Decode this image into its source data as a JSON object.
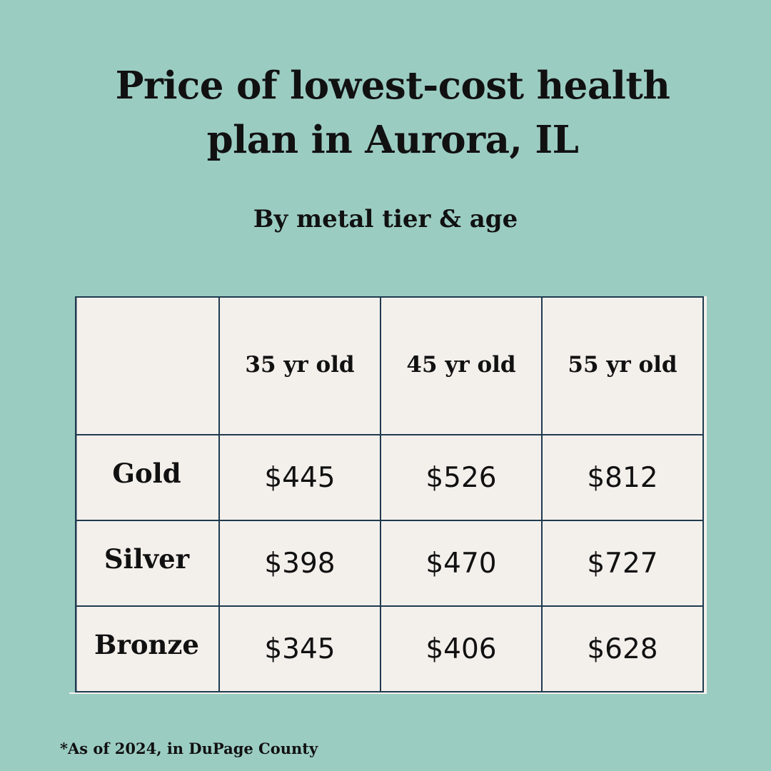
{
  "chart_data": {
    "type": "table",
    "title_lines": [
      "Price of lowest-cost health",
      "plan in Aurora, IL"
    ],
    "subtitle": "By metal tier & age",
    "columns": [
      "35 yr old",
      "45 yr old",
      "55 yr old"
    ],
    "rows": [
      {
        "tier": "Gold",
        "values": [
          "$445",
          "$526",
          "$812"
        ]
      },
      {
        "tier": "Silver",
        "values": [
          "$398",
          "$470",
          "$727"
        ]
      },
      {
        "tier": "Bronze",
        "values": [
          "$345",
          "$406",
          "$628"
        ]
      }
    ],
    "footnote": "*As of 2024, in DuPage County"
  },
  "colors": {
    "background": "#9BCCC2",
    "table_fill": "#F3F0EC",
    "grid_line": "#1F3A4F",
    "text": "#111111"
  }
}
